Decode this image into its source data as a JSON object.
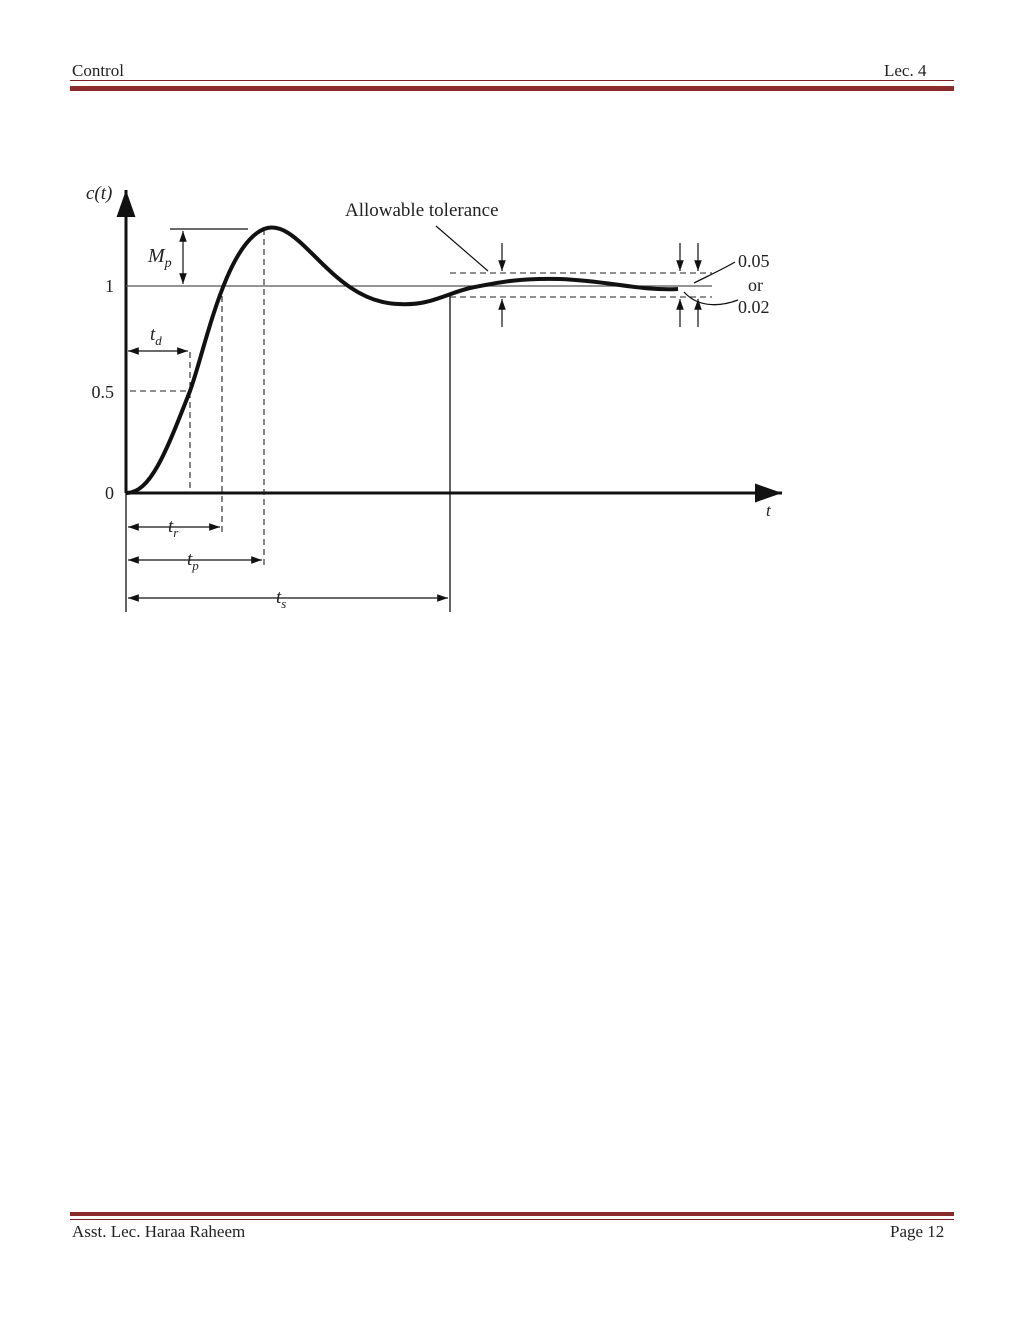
{
  "header": {
    "left": "Control",
    "right": "Lec. 4"
  },
  "figure": {
    "y_label": "c(t)",
    "x_label": "t",
    "y_levels": [
      "1",
      "0.5",
      "0"
    ],
    "overshoot": {
      "main": "M",
      "sub": "p"
    },
    "delay_time": {
      "main": "t",
      "sub": "d"
    },
    "rise_time": {
      "main": "t",
      "sub": "r"
    },
    "peak_time": {
      "main": "t",
      "sub": "p"
    },
    "settling_time": {
      "main": "t",
      "sub": "s"
    },
    "tolerance_label": "Allowable tolerance",
    "tolerance_values": [
      "0.05",
      "or",
      "0.02"
    ]
  },
  "footer": {
    "left": "Asst. Lec. Haraa Raheem",
    "right": "Page 12"
  }
}
